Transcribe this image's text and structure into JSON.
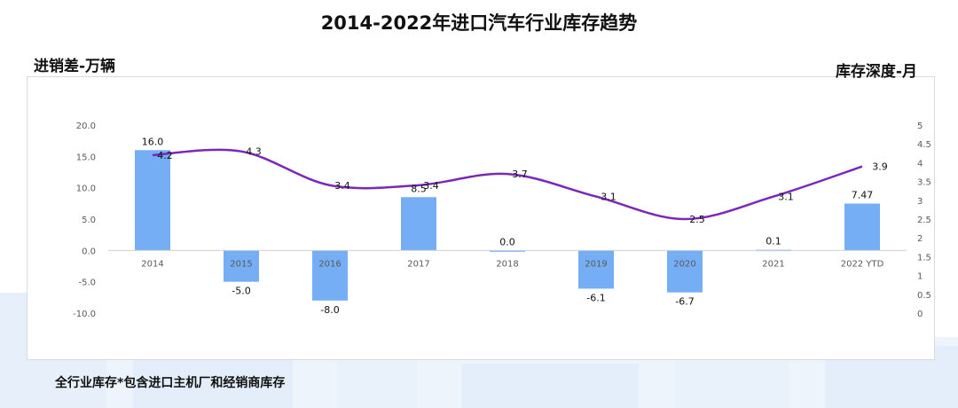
{
  "title": "2014-2022年进口汽车行业库存趋势",
  "left_axis_title": "进销差-万辆",
  "right_axis_title": "库存深度-月",
  "footnote": "全行业库存*包含进口主机厂和经销商库存",
  "colors": {
    "bar": "#76AEF5",
    "line": "#7B28B8",
    "background_accent": "#E3EEFA"
  },
  "chart_data": {
    "type": "bar+line",
    "categories": [
      "2014",
      "2015",
      "2016",
      "2017",
      "2018",
      "2019",
      "2020",
      "2021",
      "2022 YTD"
    ],
    "series": [
      {
        "axis": "left",
        "type": "bar",
        "values": [
          16.0,
          -5.0,
          -8.0,
          8.5,
          0.0,
          -6.1,
          -6.7,
          0.1,
          7.47
        ],
        "labels": [
          "16.0",
          "-5.0",
          "-8.0",
          "8.5",
          "0.0",
          "-6.1",
          "-6.7",
          "0.1",
          "7.47"
        ]
      },
      {
        "axis": "right",
        "type": "line",
        "smooth": true,
        "values": [
          4.2,
          4.3,
          3.4,
          3.4,
          3.7,
          3.1,
          2.5,
          3.1,
          3.9
        ],
        "labels": [
          "4.2",
          "4.3",
          "3.4",
          "3.4",
          "3.7",
          "3.1",
          "2.5",
          "3.1",
          "3.9"
        ]
      }
    ],
    "left_ticks": [
      "20.0",
      "15.0",
      "10.0",
      "5.0",
      "0.0",
      "-5.0",
      "-10.0"
    ],
    "right_ticks": [
      "5",
      "4.5",
      "4",
      "3.5",
      "3",
      "2.5",
      "2",
      "1.5",
      "1",
      "0.5",
      "0"
    ],
    "ylim_left": [
      -10,
      20
    ],
    "ylim_right": [
      0,
      5
    ],
    "grid": false,
    "legend": "none"
  }
}
